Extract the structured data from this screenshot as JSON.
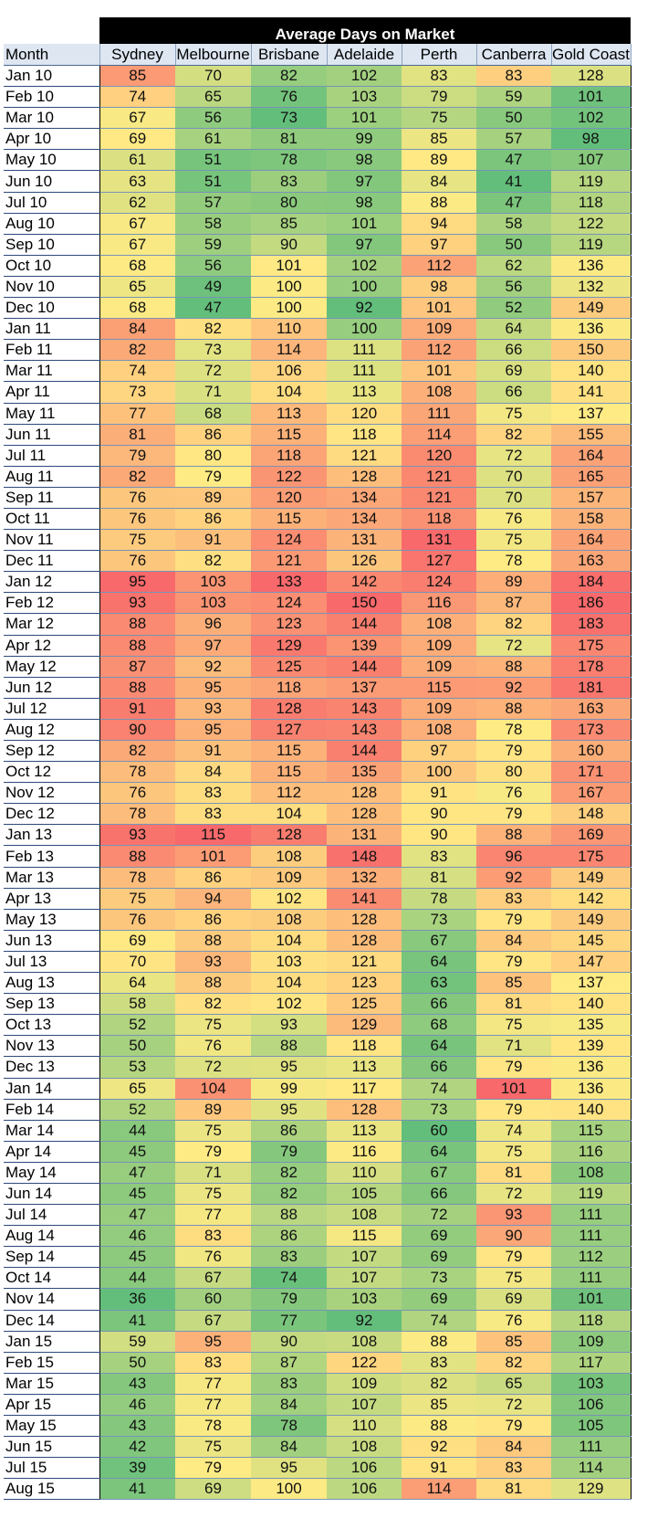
{
  "chart_data": {
    "type": "table",
    "title": "Average Days on Market",
    "row_header": "Month",
    "columns": [
      "Sydney",
      "Melbourne",
      "Brisbane",
      "Adelaide",
      "Perth",
      "Canberra",
      "Gold Coast"
    ],
    "rows": [
      {
        "month": "Jan 10",
        "values": [
          85,
          70,
          82,
          102,
          83,
          83,
          128
        ]
      },
      {
        "month": "Feb 10",
        "values": [
          74,
          65,
          76,
          103,
          79,
          59,
          101
        ]
      },
      {
        "month": "Mar 10",
        "values": [
          67,
          56,
          73,
          101,
          75,
          50,
          102
        ]
      },
      {
        "month": "Apr 10",
        "values": [
          69,
          61,
          81,
          99,
          85,
          57,
          98
        ]
      },
      {
        "month": "May 10",
        "values": [
          61,
          51,
          78,
          98,
          89,
          47,
          107
        ]
      },
      {
        "month": "Jun 10",
        "values": [
          63,
          51,
          83,
          97,
          84,
          41,
          119
        ]
      },
      {
        "month": "Jul 10",
        "values": [
          62,
          57,
          80,
          98,
          88,
          47,
          118
        ]
      },
      {
        "month": "Aug 10",
        "values": [
          67,
          58,
          85,
          101,
          94,
          58,
          122
        ]
      },
      {
        "month": "Sep 10",
        "values": [
          67,
          59,
          90,
          97,
          97,
          50,
          119
        ]
      },
      {
        "month": "Oct 10",
        "values": [
          68,
          56,
          101,
          102,
          112,
          62,
          136
        ]
      },
      {
        "month": "Nov 10",
        "values": [
          65,
          49,
          100,
          100,
          98,
          56,
          132
        ]
      },
      {
        "month": "Dec 10",
        "values": [
          68,
          47,
          100,
          92,
          101,
          52,
          149
        ]
      },
      {
        "month": "Jan 11",
        "values": [
          84,
          82,
          110,
          100,
          109,
          64,
          136
        ]
      },
      {
        "month": "Feb 11",
        "values": [
          82,
          73,
          114,
          111,
          112,
          66,
          150
        ]
      },
      {
        "month": "Mar 11",
        "values": [
          74,
          72,
          106,
          111,
          101,
          69,
          140
        ]
      },
      {
        "month": "Apr 11",
        "values": [
          73,
          71,
          104,
          113,
          108,
          66,
          141
        ]
      },
      {
        "month": "May 11",
        "values": [
          77,
          68,
          113,
          120,
          111,
          75,
          137
        ]
      },
      {
        "month": "Jun 11",
        "values": [
          81,
          86,
          115,
          118,
          114,
          82,
          155
        ]
      },
      {
        "month": "Jul 11",
        "values": [
          79,
          80,
          118,
          121,
          120,
          72,
          164
        ]
      },
      {
        "month": "Aug 11",
        "values": [
          82,
          79,
          122,
          128,
          121,
          70,
          165
        ]
      },
      {
        "month": "Sep 11",
        "values": [
          76,
          89,
          120,
          134,
          121,
          70,
          157
        ]
      },
      {
        "month": "Oct 11",
        "values": [
          76,
          86,
          115,
          134,
          118,
          76,
          158
        ]
      },
      {
        "month": "Nov 11",
        "values": [
          75,
          91,
          124,
          131,
          131,
          75,
          164
        ]
      },
      {
        "month": "Dec 11",
        "values": [
          76,
          82,
          121,
          126,
          127,
          78,
          163
        ]
      },
      {
        "month": "Jan 12",
        "values": [
          95,
          103,
          133,
          142,
          124,
          89,
          184
        ]
      },
      {
        "month": "Feb 12",
        "values": [
          93,
          103,
          124,
          150,
          116,
          87,
          186
        ]
      },
      {
        "month": "Mar 12",
        "values": [
          88,
          96,
          123,
          144,
          108,
          82,
          183
        ]
      },
      {
        "month": "Apr 12",
        "values": [
          88,
          97,
          129,
          139,
          109,
          72,
          175
        ]
      },
      {
        "month": "May 12",
        "values": [
          87,
          92,
          125,
          144,
          109,
          88,
          178
        ]
      },
      {
        "month": "Jun 12",
        "values": [
          88,
          95,
          118,
          137,
          115,
          92,
          181
        ]
      },
      {
        "month": "Jul 12",
        "values": [
          91,
          93,
          128,
          143,
          109,
          88,
          163
        ]
      },
      {
        "month": "Aug 12",
        "values": [
          90,
          95,
          127,
          143,
          108,
          78,
          173
        ]
      },
      {
        "month": "Sep 12",
        "values": [
          82,
          91,
          115,
          144,
          97,
          79,
          160
        ]
      },
      {
        "month": "Oct 12",
        "values": [
          78,
          84,
          115,
          135,
          100,
          80,
          171
        ]
      },
      {
        "month": "Nov 12",
        "values": [
          76,
          83,
          112,
          128,
          91,
          76,
          167
        ]
      },
      {
        "month": "Dec 12",
        "values": [
          78,
          83,
          104,
          128,
          90,
          79,
          148
        ]
      },
      {
        "month": "Jan 13",
        "values": [
          93,
          115,
          128,
          131,
          90,
          88,
          169
        ]
      },
      {
        "month": "Feb 13",
        "values": [
          88,
          101,
          108,
          148,
          83,
          96,
          175
        ]
      },
      {
        "month": "Mar 13",
        "values": [
          78,
          86,
          109,
          132,
          81,
          92,
          149
        ]
      },
      {
        "month": "Apr 13",
        "values": [
          75,
          94,
          102,
          141,
          78,
          83,
          142
        ]
      },
      {
        "month": "May 13",
        "values": [
          76,
          86,
          108,
          128,
          73,
          79,
          149
        ]
      },
      {
        "month": "Jun 13",
        "values": [
          69,
          88,
          104,
          128,
          67,
          84,
          145
        ]
      },
      {
        "month": "Jul 13",
        "values": [
          70,
          93,
          103,
          121,
          64,
          79,
          147
        ]
      },
      {
        "month": "Aug 13",
        "values": [
          64,
          88,
          104,
          123,
          63,
          85,
          137
        ]
      },
      {
        "month": "Sep 13",
        "values": [
          58,
          82,
          102,
          125,
          66,
          81,
          140
        ]
      },
      {
        "month": "Oct 13",
        "values": [
          52,
          75,
          93,
          129,
          68,
          75,
          135
        ]
      },
      {
        "month": "Nov 13",
        "values": [
          50,
          76,
          88,
          118,
          64,
          71,
          139
        ]
      },
      {
        "month": "Dec 13",
        "values": [
          53,
          72,
          95,
          113,
          66,
          79,
          136
        ]
      },
      {
        "month": "Jan 14",
        "values": [
          65,
          104,
          99,
          117,
          74,
          101,
          136
        ]
      },
      {
        "month": "Feb 14",
        "values": [
          52,
          89,
          95,
          128,
          73,
          79,
          140
        ]
      },
      {
        "month": "Mar 14",
        "values": [
          44,
          75,
          86,
          113,
          60,
          74,
          115
        ]
      },
      {
        "month": "Apr 14",
        "values": [
          45,
          79,
          79,
          116,
          64,
          75,
          116
        ]
      },
      {
        "month": "May 14",
        "values": [
          47,
          71,
          82,
          110,
          67,
          81,
          108
        ]
      },
      {
        "month": "Jun 14",
        "values": [
          45,
          75,
          82,
          105,
          66,
          72,
          119
        ]
      },
      {
        "month": "Jul 14",
        "values": [
          47,
          77,
          88,
          108,
          72,
          93,
          111
        ]
      },
      {
        "month": "Aug 14",
        "values": [
          46,
          83,
          86,
          115,
          69,
          90,
          111
        ]
      },
      {
        "month": "Sep 14",
        "values": [
          45,
          76,
          83,
          107,
          69,
          79,
          112
        ]
      },
      {
        "month": "Oct 14",
        "values": [
          44,
          67,
          74,
          107,
          73,
          75,
          111
        ]
      },
      {
        "month": "Nov 14",
        "values": [
          36,
          60,
          79,
          103,
          69,
          69,
          101
        ]
      },
      {
        "month": "Dec 14",
        "values": [
          41,
          67,
          77,
          92,
          74,
          76,
          118
        ]
      },
      {
        "month": "Jan 15",
        "values": [
          59,
          95,
          90,
          108,
          88,
          85,
          109
        ]
      },
      {
        "month": "Feb 15",
        "values": [
          50,
          83,
          87,
          122,
          83,
          82,
          117
        ]
      },
      {
        "month": "Mar 15",
        "values": [
          43,
          77,
          83,
          109,
          82,
          65,
          103
        ]
      },
      {
        "month": "Apr 15",
        "values": [
          46,
          77,
          84,
          107,
          85,
          72,
          106
        ]
      },
      {
        "month": "May 15",
        "values": [
          43,
          78,
          78,
          110,
          88,
          79,
          105
        ]
      },
      {
        "month": "Jun 15",
        "values": [
          42,
          75,
          84,
          108,
          92,
          84,
          111
        ]
      },
      {
        "month": "Jul 15",
        "values": [
          39,
          79,
          95,
          106,
          91,
          83,
          114
        ]
      },
      {
        "month": "Aug 15",
        "values": [
          41,
          69,
          100,
          106,
          114,
          81,
          129
        ]
      }
    ],
    "color_scale": {
      "low": "#63be7b",
      "mid": "#ffeb84",
      "high": "#f8696b",
      "scope": "per-column"
    }
  }
}
